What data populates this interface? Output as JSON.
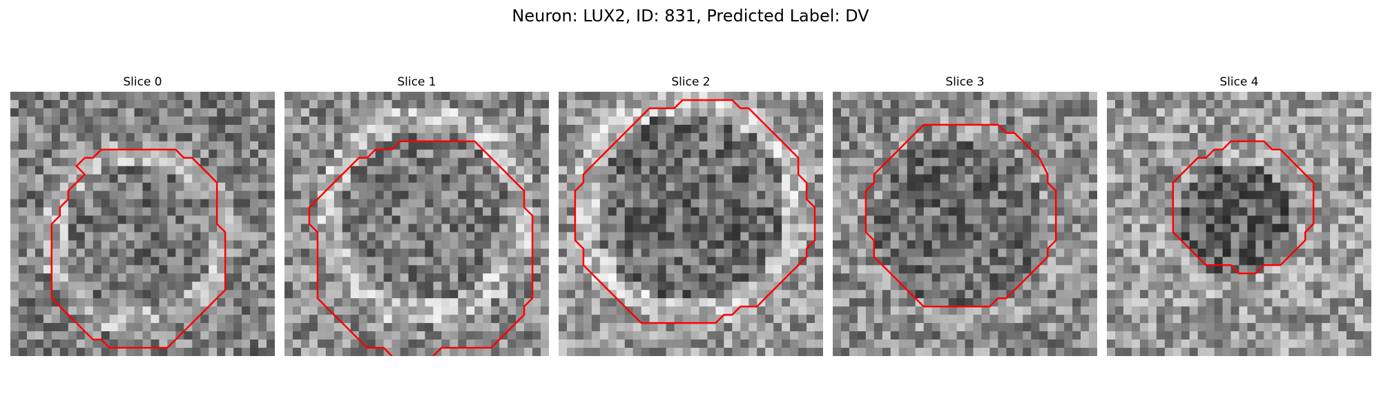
{
  "figure": {
    "title": "Neuron: LUX2, ID: 831, Predicted Label: DV",
    "outline_color": "#ff0000",
    "colormap": "gray",
    "slices": [
      {
        "title": "Slice 0"
      },
      {
        "title": "Slice 1"
      },
      {
        "title": "Slice 2"
      },
      {
        "title": "Slice 3"
      },
      {
        "title": "Slice 4"
      }
    ]
  }
}
